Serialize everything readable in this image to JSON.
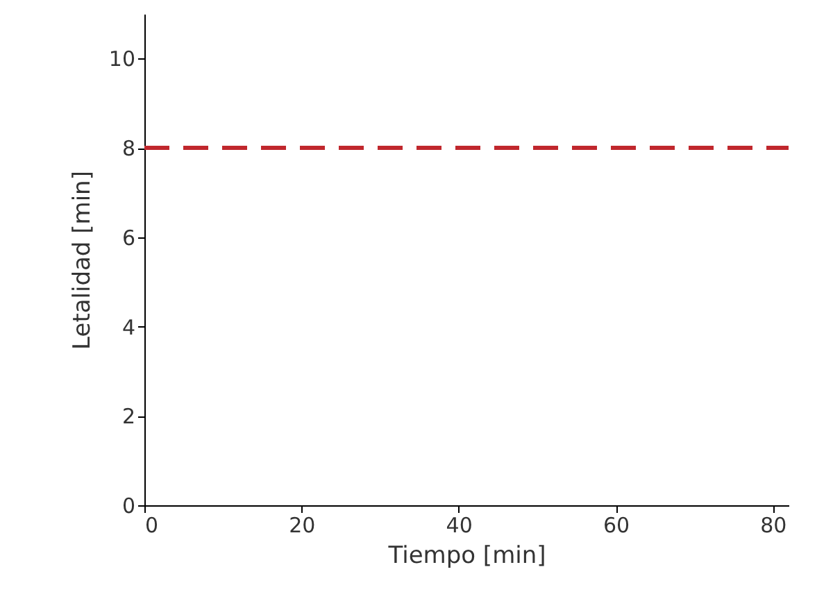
{
  "chart_data": {
    "type": "line",
    "xlabel": "Tiempo [min]",
    "ylabel": "Letalidad [min]",
    "x": [
      0,
      82
    ],
    "xlim": [
      0,
      82
    ],
    "xticks": [
      0,
      20,
      40,
      60,
      80
    ],
    "ylim": [
      0,
      11
    ],
    "yticks": [
      0,
      2,
      4,
      6,
      8,
      10
    ],
    "series": [
      {
        "color": "#c0272d",
        "values": [
          8,
          8
        ]
      }
    ],
    "line_style": "dashed",
    "marker": "none",
    "grid": false
  }
}
